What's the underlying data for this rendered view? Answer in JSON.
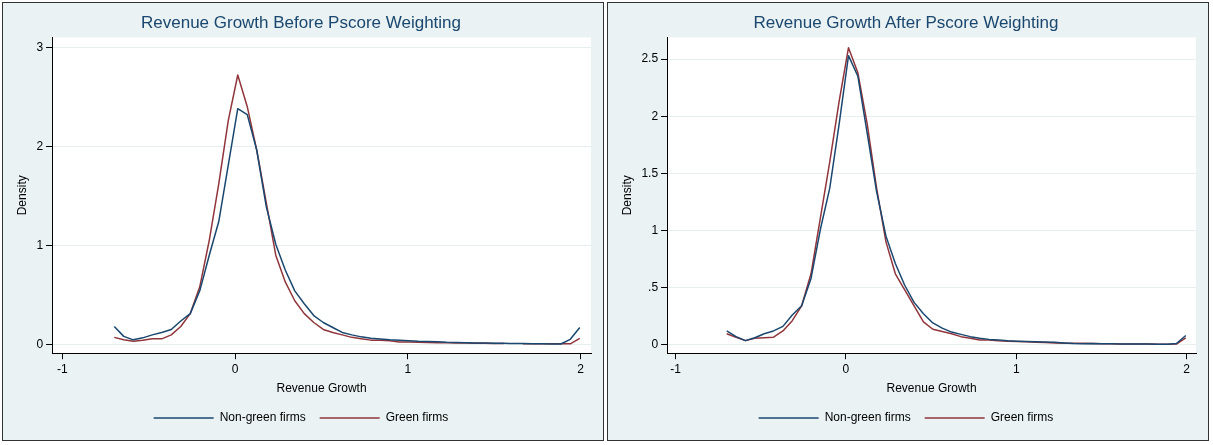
{
  "chart_data": [
    {
      "type": "line",
      "title": "Revenue Growth Before Pscore Weighting",
      "xlabel": "Revenue Growth",
      "ylabel": "Density",
      "x": [
        -0.7,
        -0.645,
        -0.59,
        -0.535,
        -0.48,
        -0.425,
        -0.37,
        -0.315,
        -0.26,
        -0.205,
        -0.15,
        -0.095,
        -0.04,
        0.015,
        0.07,
        0.125,
        0.18,
        0.235,
        0.29,
        0.345,
        0.4,
        0.455,
        0.51,
        0.565,
        0.62,
        0.675,
        0.73,
        0.785,
        0.84,
        0.895,
        0.95,
        1.005,
        1.06,
        1.115,
        1.17,
        1.225,
        1.28,
        1.335,
        1.39,
        1.445,
        1.5,
        1.555,
        1.61,
        1.665,
        1.72,
        1.775,
        1.83,
        1.885,
        1.94,
        1.995
      ],
      "series": [
        {
          "name": "Non-green firms",
          "color": "#1a476f",
          "values": [
            0.18,
            0.08,
            0.045,
            0.065,
            0.095,
            0.12,
            0.15,
            0.235,
            0.31,
            0.54,
            0.9,
            1.24,
            1.81,
            2.38,
            2.32,
            1.96,
            1.39,
            1.01,
            0.75,
            0.54,
            0.41,
            0.29,
            0.22,
            0.17,
            0.12,
            0.095,
            0.075,
            0.06,
            0.053,
            0.045,
            0.04,
            0.035,
            0.03,
            0.028,
            0.025,
            0.02,
            0.018,
            0.015,
            0.012,
            0.012,
            0.01,
            0.01,
            0.008,
            0.008,
            0.006,
            0.005,
            0.004,
            0.003,
            0.05,
            0.17
          ]
        },
        {
          "name": "Green firms",
          "color": "#90353b",
          "values": [
            0.07,
            0.045,
            0.03,
            0.04,
            0.055,
            0.055,
            0.095,
            0.18,
            0.31,
            0.58,
            1.05,
            1.62,
            2.26,
            2.72,
            2.4,
            1.96,
            1.43,
            0.9,
            0.63,
            0.44,
            0.31,
            0.22,
            0.15,
            0.12,
            0.095,
            0.07,
            0.057,
            0.042,
            0.042,
            0.035,
            0.023,
            0.023,
            0.02,
            0.018,
            0.015,
            0.015,
            0.012,
            0.012,
            0.01,
            0.01,
            0.008,
            0.008,
            null,
            0.006,
            0.006,
            0.005,
            0.005,
            0.005,
            0.005,
            0.06
          ]
        }
      ],
      "xlim": [
        -1.06,
        2.06
      ],
      "xticks": [
        -1,
        0,
        1,
        2
      ],
      "ylim": [
        -0.09,
        3.1
      ],
      "yticks": [
        0,
        1,
        2,
        3
      ],
      "grid": "y",
      "legend": "bottom",
      "marker": "none",
      "line_style": "solid"
    },
    {
      "type": "line",
      "title": "Revenue Growth After Pscore Weighting",
      "xlabel": "Revenue Growth",
      "ylabel": "Density",
      "x": [
        -0.7,
        -0.645,
        -0.59,
        -0.535,
        -0.48,
        -0.425,
        -0.37,
        -0.315,
        -0.26,
        -0.205,
        -0.15,
        -0.095,
        -0.04,
        0.015,
        0.07,
        0.125,
        0.18,
        0.235,
        0.29,
        0.345,
        0.4,
        0.455,
        0.51,
        0.565,
        0.62,
        0.675,
        0.73,
        0.785,
        0.84,
        0.895,
        0.95,
        1.005,
        1.06,
        1.115,
        1.17,
        1.225,
        1.28,
        1.335,
        1.39,
        1.445,
        1.5,
        1.555,
        1.61,
        1.665,
        1.72,
        1.775,
        1.83,
        1.885,
        1.94,
        1.995
      ],
      "series": [
        {
          "name": "Non-green firms",
          "color": "#1a476f",
          "values": [
            0.12,
            0.07,
            0.035,
            0.06,
            0.095,
            0.12,
            0.16,
            0.26,
            0.34,
            0.58,
            1.01,
            1.37,
            1.93,
            2.53,
            2.35,
            1.85,
            1.34,
            0.95,
            0.71,
            0.52,
            0.37,
            0.27,
            0.19,
            0.145,
            0.11,
            0.09,
            0.07,
            0.056,
            0.046,
            0.04,
            0.033,
            0.03,
            0.027,
            0.025,
            0.022,
            0.02,
            0.015,
            0.01,
            0.008,
            0.01,
            0.008,
            0.007,
            0.006,
            0.006,
            0.005,
            0.005,
            0.004,
            0.003,
            0.01,
            0.08
          ]
        },
        {
          "name": "Green firms",
          "color": "#90353b",
          "values": [
            0.095,
            0.065,
            0.035,
            0.055,
            0.06,
            0.065,
            0.12,
            0.21,
            0.34,
            0.62,
            1.11,
            1.6,
            2.13,
            2.6,
            2.38,
            1.93,
            1.37,
            0.9,
            0.62,
            0.48,
            0.34,
            0.2,
            0.135,
            0.115,
            0.095,
            0.07,
            0.056,
            0.04,
            0.04,
            0.033,
            0.03,
            0.028,
            0.025,
            0.02,
            0.018,
            0.015,
            0.012,
            0.012,
            0.012,
            0.01,
            0.008,
            0.008,
            0.006,
            0.006,
            0.005,
            0.005,
            0.004,
            0.003,
            0.005,
            0.06
          ]
        }
      ],
      "xlim": [
        -1.05,
        2.055
      ],
      "xticks": [
        -1,
        0,
        1,
        2
      ],
      "ylim": [
        -0.075,
        2.69
      ],
      "yticks": [
        0,
        {
          "value": 0.5,
          "label": ".5"
        },
        1,
        1.5,
        2,
        2.5
      ],
      "grid": "y",
      "legend": "bottom",
      "marker": "none",
      "line_style": "solid"
    }
  ]
}
